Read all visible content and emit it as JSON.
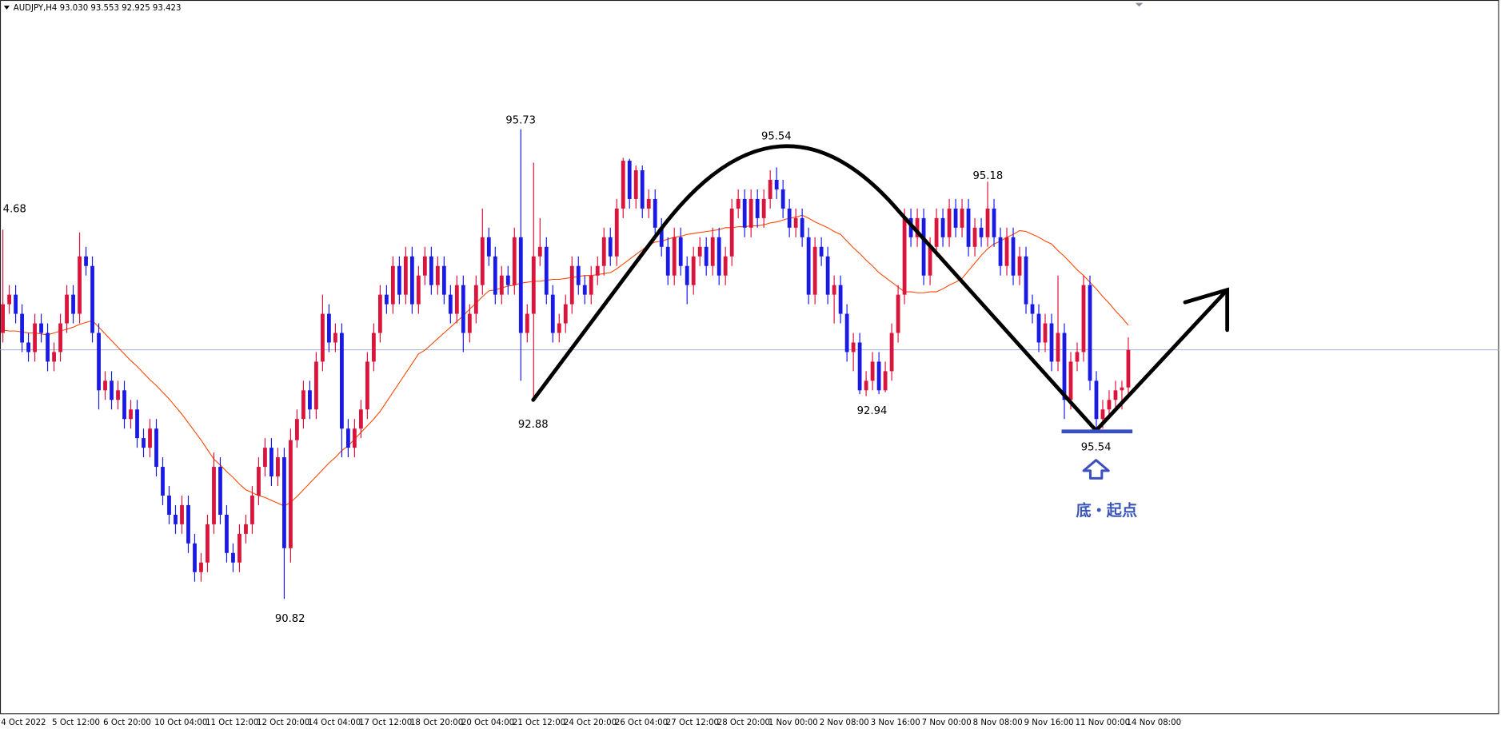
{
  "chart_data": {
    "type": "candlestick",
    "title": "AUDJPY,H4  93.030 93.553 92.925 93.423",
    "categories": [
      "4 Oct 2022",
      null,
      null,
      null,
      null,
      null,
      null,
      null,
      "5 Oct 12:00",
      null,
      null,
      null,
      null,
      null,
      null,
      null,
      "6 Oct 20:00",
      null,
      null,
      null,
      null,
      null,
      null,
      null,
      "10 Oct 04:00",
      null,
      null,
      null,
      null,
      null,
      null,
      null,
      "11 Oct 12:00",
      null,
      null,
      null,
      null,
      null,
      null,
      null,
      "12 Oct 20:00",
      null,
      null,
      null,
      null,
      null,
      null,
      null,
      "14 Oct 04:00",
      null,
      null,
      null,
      null,
      null,
      null,
      null,
      "17 Oct 12:00",
      null,
      null,
      null,
      null,
      null,
      null,
      null,
      "18 Oct 20:00",
      null,
      null,
      null,
      null,
      null,
      null,
      null,
      "20 Oct 04:00",
      null,
      null,
      null,
      null,
      null,
      null,
      null,
      "21 Oct 12:00",
      null,
      null,
      null,
      null,
      null,
      null,
      null,
      "24 Oct 20:00",
      null,
      null,
      null,
      null,
      null,
      null,
      null,
      "26 Oct 04:00",
      null,
      null,
      null,
      null,
      null,
      null,
      null,
      "27 Oct 12:00",
      null,
      null,
      null,
      null,
      null,
      null,
      null,
      "28 Oct 20:00",
      null,
      null,
      null,
      null,
      null,
      null,
      null,
      "1 Nov 00:00",
      null,
      null,
      null,
      null,
      null,
      null,
      null,
      "2 Nov 08:00",
      null,
      null,
      null,
      null,
      null,
      null,
      null,
      "3 Nov 16:00",
      null,
      null,
      null,
      null,
      null,
      null,
      null,
      "7 Nov 00:00",
      null,
      null,
      null,
      null,
      null,
      null,
      null,
      "8 Nov 08:00",
      null,
      null,
      null,
      null,
      null,
      null,
      null,
      "9 Nov 16:00",
      null,
      null,
      null,
      null,
      null,
      null,
      null,
      "11 Nov 00:00",
      null,
      null,
      null,
      null,
      null,
      null,
      null,
      "14 Nov 08:00"
    ],
    "open": [
      93.6,
      93.9,
      94.0,
      93.8,
      93.5,
      93.4,
      93.7,
      93.6,
      93.3,
      93.4,
      93.7,
      94.0,
      93.8,
      94.4,
      94.3,
      93.6,
      93.0,
      93.1,
      92.9,
      93.0,
      92.7,
      92.8,
      92.5,
      92.4,
      92.6,
      92.2,
      91.9,
      91.7,
      91.6,
      91.8,
      91.4,
      91.1,
      91.2,
      91.6,
      92.2,
      91.7,
      91.3,
      91.2,
      91.5,
      91.6,
      91.9,
      92.2,
      92.4,
      92.1,
      92.3,
      91.35,
      92.48,
      92.7,
      93.0,
      92.8,
      93.3,
      93.8,
      93.5,
      93.6,
      92.6,
      92.4,
      92.6,
      92.8,
      93.3,
      93.6,
      94.0,
      93.9,
      94.3,
      94.0,
      94.4,
      93.9,
      94.2,
      94.4,
      94.1,
      94.3,
      94.0,
      93.8,
      94.1,
      93.6,
      93.8,
      94.1,
      94.6,
      94.4,
      94.0,
      94.2,
      94.1,
      94.6,
      93.6,
      93.8,
      94.4,
      94.5,
      94.0,
      93.6,
      93.7,
      93.9,
      94.3,
      94.1,
      94.0,
      94.2,
      94.3,
      94.6,
      94.4,
      94.9,
      95.4,
      95.0,
      95.3,
      94.9,
      95.0,
      94.7,
      94.5,
      94.2,
      94.6,
      94.3,
      94.1,
      94.4,
      94.5,
      94.3,
      94.6,
      94.2,
      94.4,
      94.9,
      95.0,
      94.7,
      95.0,
      94.8,
      95.0,
      95.2,
      95.1,
      94.9,
      94.7,
      94.8,
      94.6,
      94.0,
      94.5,
      94.4,
      94.0,
      94.1,
      93.8,
      93.4,
      93.5,
      93.0,
      93.1,
      93.3,
      93.0,
      93.2,
      93.6,
      94.0,
      94.8,
      94.6,
      94.8,
      94.2,
      94.5,
      94.8,
      94.6,
      94.9,
      94.7,
      94.9,
      94.5,
      94.7,
      94.6,
      94.9,
      94.6,
      94.3,
      94.6,
      94.2,
      94.4,
      93.9,
      93.8,
      93.5,
      93.7,
      93.3,
      93.6,
      92.9,
      93.3,
      93.4,
      94.1,
      93.1,
      92.7,
      92.8,
      92.9,
      93.0,
      93.03
    ],
    "high": [
      94.68,
      94.1,
      94.1,
      93.9,
      93.6,
      93.8,
      93.8,
      93.7,
      93.5,
      93.8,
      94.1,
      94.1,
      94.65,
      94.5,
      94.4,
      93.7,
      93.2,
      93.2,
      93.1,
      93.1,
      92.9,
      92.9,
      92.6,
      92.7,
      92.7,
      92.3,
      92.0,
      91.8,
      91.9,
      91.9,
      91.5,
      91.3,
      91.7,
      92.35,
      92.3,
      91.8,
      91.4,
      91.6,
      91.7,
      92.0,
      92.3,
      92.5,
      92.5,
      92.4,
      92.4,
      92.6,
      92.8,
      93.1,
      93.1,
      93.4,
      94.0,
      93.9,
      93.7,
      93.7,
      92.7,
      92.7,
      92.9,
      93.4,
      93.7,
      94.1,
      94.1,
      94.4,
      94.4,
      94.5,
      94.5,
      94.3,
      94.5,
      94.5,
      94.4,
      94.4,
      94.1,
      94.2,
      94.2,
      93.9,
      94.2,
      94.9,
      94.7,
      94.5,
      94.3,
      94.3,
      94.7,
      95.73,
      93.9,
      95.38,
      94.8,
      94.6,
      94.1,
      93.8,
      94.0,
      94.4,
      94.4,
      94.2,
      94.3,
      94.4,
      94.7,
      94.7,
      95.0,
      95.43,
      95.42,
      95.35,
      95.35,
      95.1,
      95.1,
      94.8,
      94.6,
      94.7,
      94.7,
      94.4,
      94.5,
      94.6,
      94.6,
      94.7,
      94.7,
      94.5,
      95.0,
      95.1,
      95.1,
      95.1,
      95.1,
      95.1,
      95.3,
      95.33,
      95.2,
      95.0,
      94.9,
      94.9,
      94.7,
      94.6,
      94.6,
      94.5,
      94.2,
      94.2,
      93.9,
      93.6,
      93.6,
      93.2,
      93.4,
      93.4,
      93.3,
      93.7,
      94.1,
      94.9,
      94.9,
      94.9,
      94.9,
      94.6,
      94.9,
      94.9,
      95.0,
      95.0,
      95.0,
      95.0,
      94.8,
      94.8,
      95.18,
      95.0,
      94.7,
      94.7,
      94.7,
      94.5,
      94.5,
      94.0,
      93.9,
      93.8,
      93.8,
      94.2,
      93.7,
      93.4,
      93.5,
      94.2,
      94.2,
      93.2,
      92.9,
      93.0,
      93.1,
      93.1,
      93.553
    ],
    "low": [
      93.5,
      93.8,
      93.7,
      93.4,
      93.3,
      93.3,
      93.5,
      93.2,
      93.2,
      93.3,
      93.6,
      93.7,
      93.7,
      94.2,
      93.5,
      92.8,
      92.9,
      92.8,
      92.8,
      92.6,
      92.6,
      92.4,
      92.3,
      92.3,
      92.1,
      91.8,
      91.6,
      91.5,
      91.5,
      91.3,
      91.0,
      91.0,
      91.1,
      91.5,
      91.6,
      91.2,
      91.1,
      91.1,
      91.4,
      91.5,
      91.8,
      92.1,
      92.0,
      92.0,
      90.82,
      91.2,
      92.4,
      92.6,
      92.7,
      92.7,
      93.2,
      93.4,
      93.4,
      92.3,
      92.3,
      92.3,
      92.5,
      92.7,
      93.2,
      93.5,
      93.8,
      93.8,
      93.9,
      93.9,
      93.8,
      93.8,
      94.1,
      94.0,
      94.0,
      93.9,
      93.7,
      93.7,
      93.4,
      93.5,
      93.7,
      94.0,
      94.3,
      93.9,
      93.9,
      94.0,
      94.0,
      93.1,
      93.5,
      92.88,
      94.3,
      93.9,
      93.5,
      93.5,
      93.6,
      93.8,
      94.0,
      93.9,
      93.9,
      94.1,
      94.2,
      94.3,
      94.3,
      94.8,
      94.9,
      94.9,
      94.8,
      94.8,
      94.6,
      94.4,
      94.1,
      94.1,
      94.2,
      93.9,
      94.0,
      94.3,
      94.2,
      94.2,
      94.1,
      94.1,
      94.3,
      94.8,
      94.6,
      94.6,
      94.7,
      94.7,
      94.9,
      95.0,
      94.8,
      94.6,
      94.6,
      94.5,
      93.9,
      93.9,
      94.3,
      93.9,
      93.7,
      93.7,
      93.3,
      93.2,
      92.96,
      92.94,
      93.0,
      92.96,
      92.98,
      93.1,
      93.5,
      93.9,
      94.5,
      94.5,
      94.1,
      94.1,
      94.4,
      94.5,
      94.5,
      94.6,
      94.6,
      94.4,
      94.4,
      94.5,
      94.5,
      94.5,
      94.2,
      94.2,
      94.1,
      94.1,
      93.8,
      93.7,
      93.4,
      93.4,
      93.2,
      93.2,
      92.7,
      92.8,
      93.2,
      93.3,
      93.0,
      92.58,
      92.6,
      92.7,
      92.8,
      92.8,
      92.925
    ],
    "close": [
      93.9,
      94.0,
      93.8,
      93.5,
      93.4,
      93.7,
      93.6,
      93.3,
      93.4,
      93.7,
      94.0,
      93.8,
      94.4,
      94.3,
      93.6,
      93.0,
      93.1,
      92.9,
      93.0,
      92.7,
      92.8,
      92.5,
      92.4,
      92.6,
      92.2,
      91.9,
      91.7,
      91.6,
      91.8,
      91.4,
      91.1,
      91.2,
      91.6,
      92.2,
      91.7,
      91.3,
      91.2,
      91.5,
      91.6,
      91.9,
      92.2,
      92.4,
      92.1,
      92.3,
      91.35,
      92.48,
      92.7,
      93.0,
      92.8,
      93.3,
      93.8,
      93.5,
      93.6,
      92.6,
      92.4,
      92.6,
      92.8,
      93.3,
      93.6,
      94.0,
      93.9,
      94.3,
      94.0,
      94.4,
      93.9,
      94.2,
      94.4,
      94.1,
      94.3,
      94.0,
      93.8,
      94.1,
      93.6,
      93.8,
      94.1,
      94.6,
      94.4,
      94.0,
      94.2,
      94.1,
      94.6,
      93.6,
      93.8,
      94.4,
      94.5,
      94.0,
      93.6,
      93.7,
      93.9,
      94.3,
      94.1,
      94.0,
      94.2,
      94.3,
      94.6,
      94.4,
      94.9,
      95.4,
      95.0,
      95.3,
      94.9,
      95.0,
      94.7,
      94.5,
      94.2,
      94.6,
      94.3,
      94.1,
      94.4,
      94.5,
      94.3,
      94.6,
      94.2,
      94.4,
      94.9,
      95.0,
      94.7,
      95.0,
      94.8,
      95.0,
      95.2,
      95.1,
      94.9,
      94.7,
      94.8,
      94.6,
      94.0,
      94.5,
      94.4,
      94.0,
      94.1,
      93.8,
      93.4,
      93.5,
      93.0,
      93.1,
      93.3,
      93.0,
      93.2,
      93.6,
      94.0,
      94.8,
      94.6,
      94.8,
      94.2,
      94.5,
      94.8,
      94.6,
      94.9,
      94.7,
      94.9,
      94.5,
      94.7,
      94.6,
      94.9,
      94.6,
      94.3,
      94.6,
      94.2,
      94.4,
      93.9,
      93.8,
      93.5,
      93.7,
      93.3,
      93.6,
      92.9,
      93.3,
      93.4,
      94.1,
      93.1,
      92.7,
      92.8,
      92.9,
      93.0,
      93.03,
      93.423
    ],
    "up_color": "#dc143c",
    "down_color": "#1a1ae6",
    "moving_average": {
      "color": "#ff4500",
      "values": [
        93.63,
        93.62,
        93.62,
        93.61,
        93.6,
        93.6,
        93.59,
        93.58,
        93.6,
        93.62,
        93.64,
        93.66,
        93.69,
        93.71,
        93.73,
        93.66,
        93.59,
        93.52,
        93.45,
        93.38,
        93.31,
        93.25,
        93.18,
        93.11,
        93.05,
        92.98,
        92.91,
        92.83,
        92.75,
        92.66,
        92.57,
        92.48,
        92.38,
        92.28,
        92.22,
        92.15,
        92.09,
        92.02,
        91.96,
        91.93,
        91.9,
        91.88,
        91.85,
        91.82,
        91.79,
        91.83,
        91.89,
        91.96,
        92.03,
        92.1,
        92.17,
        92.24,
        92.3,
        92.37,
        92.42,
        92.49,
        92.56,
        92.63,
        92.7,
        92.78,
        92.88,
        92.98,
        93.08,
        93.18,
        93.28,
        93.38,
        93.42,
        93.48,
        93.54,
        93.6,
        93.66,
        93.72,
        93.78,
        93.85,
        93.91,
        93.98,
        94.04,
        94.05,
        94.07,
        94.09,
        94.1,
        94.12,
        94.13,
        94.14,
        94.14,
        94.15,
        94.16,
        94.16,
        94.17,
        94.18,
        94.19,
        94.2,
        94.2,
        94.21,
        94.22,
        94.23,
        94.27,
        94.32,
        94.37,
        94.42,
        94.47,
        94.52,
        94.55,
        94.56,
        94.58,
        94.6,
        94.61,
        94.63,
        94.64,
        94.65,
        94.66,
        94.67,
        94.68,
        94.7,
        94.7,
        94.71,
        94.71,
        94.72,
        94.72,
        94.73,
        94.75,
        94.76,
        94.78,
        94.8,
        94.81,
        94.83,
        94.8,
        94.76,
        94.73,
        94.7,
        94.66,
        94.63,
        94.56,
        94.49,
        94.43,
        94.36,
        94.3,
        94.23,
        94.18,
        94.13,
        94.08,
        94.03,
        94.03,
        94.02,
        94.02,
        94.03,
        94.03,
        94.06,
        94.1,
        94.13,
        94.17,
        94.25,
        94.33,
        94.41,
        94.48,
        94.53,
        94.56,
        94.6,
        94.63,
        94.67,
        94.66,
        94.63,
        94.6,
        94.56,
        94.53,
        94.46,
        94.4,
        94.33,
        94.26,
        94.2,
        94.13,
        94.06,
        93.98,
        93.91,
        93.83,
        93.76,
        93.68
      ]
    },
    "price_line_color": "#8fa3d1",
    "ylim": [
      89.62,
      97.08
    ],
    "grid": false,
    "annotations": [
      "4.68",
      "95.73",
      "92.88",
      "90.82",
      "95.54",
      "92.94",
      "95.18",
      "95.54",
      "底・起点"
    ]
  }
}
